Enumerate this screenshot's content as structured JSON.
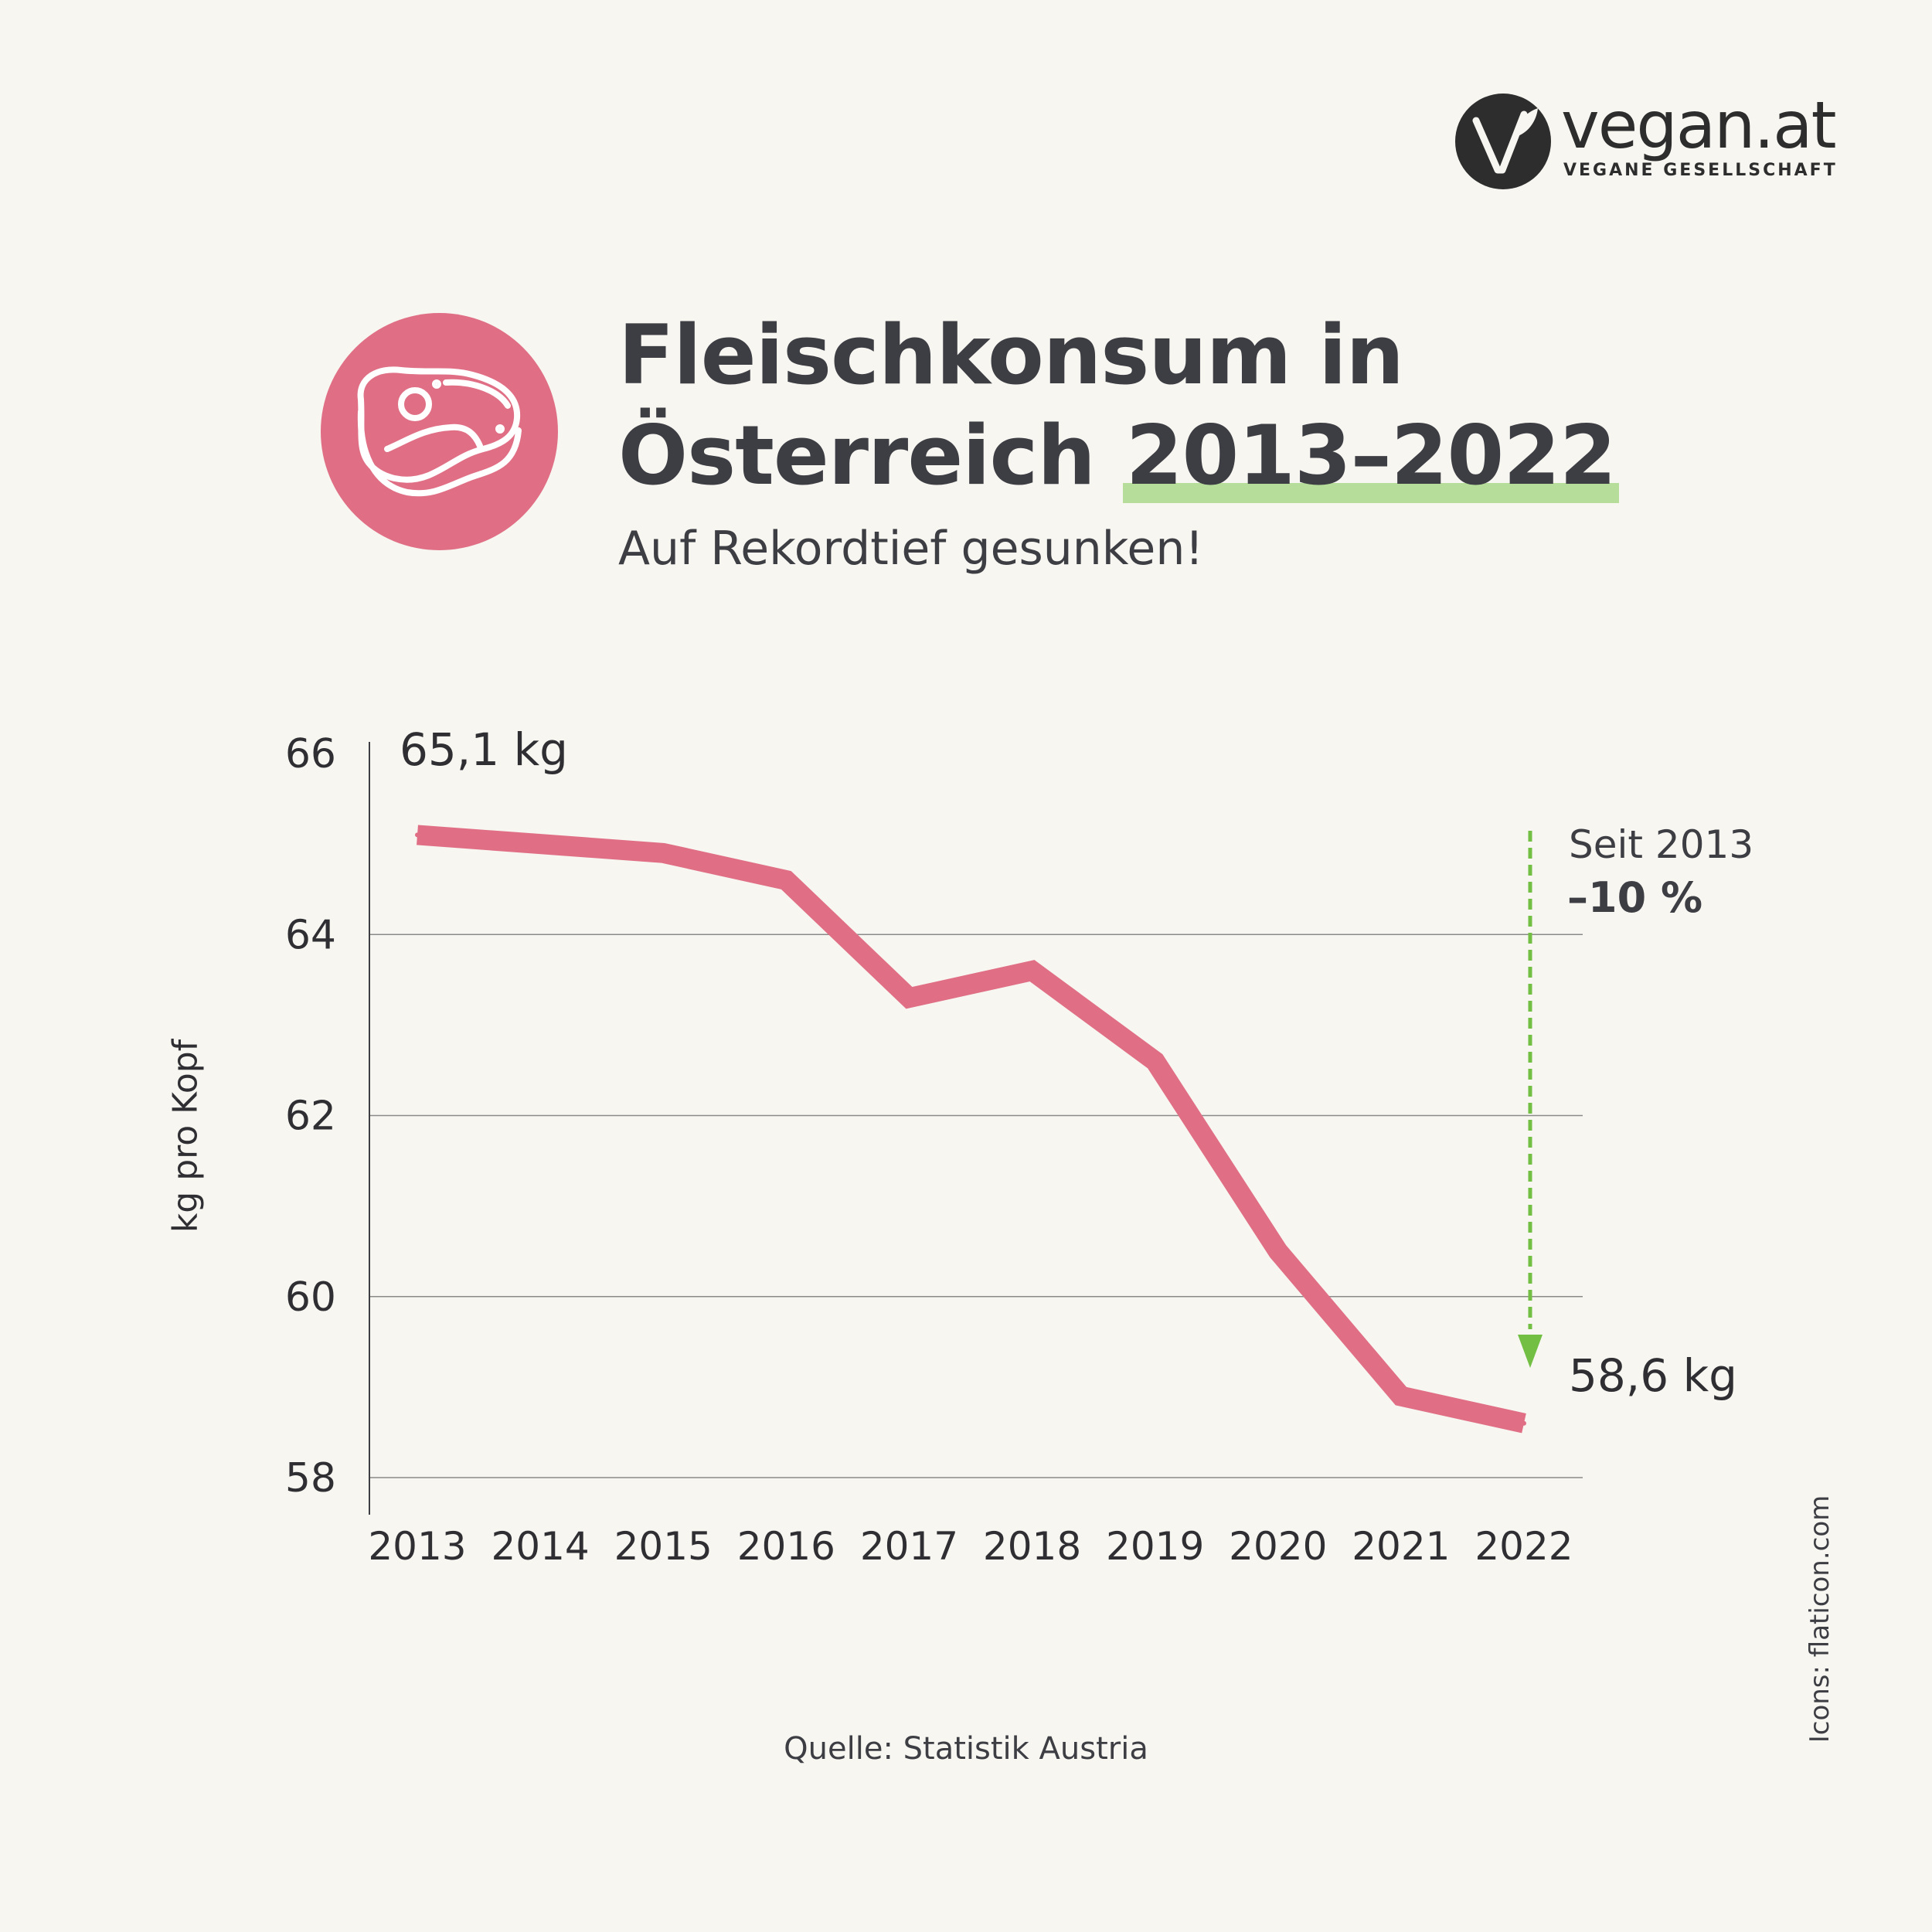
{
  "brand": {
    "name": "vegan.at",
    "tagline": "VEGANE GESELLSCHAFT",
    "logo_icon": "v-leaf-logo-icon"
  },
  "header": {
    "icon": "meat-steak-icon",
    "title_line1": "Fleischkonsum in",
    "title_line2_prefix": "Österreich ",
    "title_line2_highlight": "2013–2022",
    "subtitle": "Auf Rekordtief gesunken!"
  },
  "colors": {
    "background": "#f7f6f1",
    "line": "#e06f85",
    "badge": "#e06f85",
    "highlight": "#b6de9a",
    "arrow": "#72bf44",
    "text": "#3d3d44"
  },
  "chart_data": {
    "type": "line",
    "x": [
      "2013",
      "2014",
      "2015",
      "2016",
      "2017",
      "2018",
      "2019",
      "2020",
      "2021",
      "2022"
    ],
    "series": [
      {
        "values": [
          65.1,
          65.0,
          64.9,
          64.6,
          63.3,
          63.6,
          62.6,
          60.5,
          58.9,
          58.6
        ]
      }
    ],
    "ylabel": "kg pro Kopf",
    "yticks": [
      "58",
      "60",
      "62",
      "64",
      "66"
    ],
    "ylim": [
      58,
      66
    ],
    "grid": true,
    "annotations": {
      "start_label": "65,1 kg",
      "end_label": "58,6 kg",
      "change_caption": "Seit 2013",
      "change_value": "–10 %"
    }
  },
  "footer": {
    "source": "Quelle: Statistik Austria",
    "credits": "Icons: flaticon.com"
  }
}
